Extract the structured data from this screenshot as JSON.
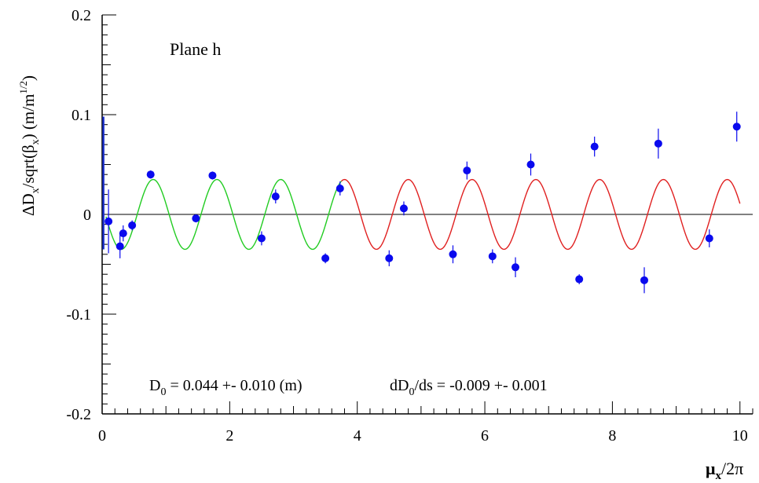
{
  "chart_data": {
    "type": "scatter",
    "annotation_plane": "Plane h",
    "x_axis_label": "μ",
    "x_axis_label_sub": "x",
    "x_axis_label_rest": "/2π",
    "y_axis_label": "ΔD",
    "y_axis_label_sub1": "x",
    "y_axis_label_mid": "/sqrt(β",
    "y_axis_label_sub2": "x",
    "y_axis_label_end": ") (m/m",
    "y_axis_label_sup": "1/2",
    "y_axis_label_close": ")",
    "fit_text_left_a": "D",
    "fit_text_left_sub": "0",
    "fit_text_left_b": " =  0.044 +-  0.010 (m)",
    "fit_text_right_a": "dD",
    "fit_text_right_sub": "0",
    "fit_text_right_b": "/ds = -0.009 +-  0.001",
    "xlim": [
      0,
      10.2
    ],
    "ylim": [
      -0.2,
      0.2
    ],
    "xticks": [
      0,
      2,
      4,
      6,
      8,
      10
    ],
    "xtick_labels": [
      "0",
      "2",
      "4",
      "6",
      "8",
      "10"
    ],
    "yticks": [
      -0.2,
      -0.1,
      0,
      0.1,
      0.2
    ],
    "ytick_labels": [
      "-0.2",
      "-0.1",
      "0",
      "0.1",
      "0.2"
    ],
    "points": [
      {
        "x": 0.1,
        "y": -0.007,
        "err": 0.032
      },
      {
        "x": 0.28,
        "y": -0.032,
        "err": 0.012
      },
      {
        "x": 0.33,
        "y": -0.019,
        "err": 0.008
      },
      {
        "x": 0.47,
        "y": -0.011,
        "err": 0.005
      },
      {
        "x": 0.76,
        "y": 0.04,
        "err": 0.004
      },
      {
        "x": 1.47,
        "y": -0.004,
        "err": 0.004
      },
      {
        "x": 1.73,
        "y": 0.039,
        "err": 0.004
      },
      {
        "x": 2.5,
        "y": -0.024,
        "err": 0.007
      },
      {
        "x": 2.72,
        "y": 0.018,
        "err": 0.007
      },
      {
        "x": 3.5,
        "y": -0.044,
        "err": 0.005
      },
      {
        "x": 3.73,
        "y": 0.026,
        "err": 0.007
      },
      {
        "x": 4.5,
        "y": -0.044,
        "err": 0.008
      },
      {
        "x": 4.73,
        "y": 0.006,
        "err": 0.007
      },
      {
        "x": 5.5,
        "y": -0.04,
        "err": 0.009
      },
      {
        "x": 5.72,
        "y": 0.044,
        "err": 0.009
      },
      {
        "x": 6.12,
        "y": -0.042,
        "err": 0.007
      },
      {
        "x": 6.48,
        "y": -0.053,
        "err": 0.01
      },
      {
        "x": 6.72,
        "y": 0.05,
        "err": 0.011
      },
      {
        "x": 7.48,
        "y": -0.065,
        "err": 0.005
      },
      {
        "x": 7.72,
        "y": 0.068,
        "err": 0.01
      },
      {
        "x": 8.5,
        "y": -0.066,
        "err": 0.013
      },
      {
        "x": 8.72,
        "y": 0.071,
        "err": 0.015
      },
      {
        "x": 9.52,
        "y": -0.024,
        "err": 0.009
      },
      {
        "x": 9.95,
        "y": 0.088,
        "err": 0.015
      }
    ],
    "fit_curve": {
      "amplitude": 0.035,
      "period": 1.0,
      "peak_x": 0.8,
      "segments": [
        {
          "x_start": 0.06,
          "x_end": 3.75,
          "color": "#22cc22"
        },
        {
          "x_start": 3.75,
          "x_end": 10.0,
          "color": "#e02020"
        }
      ]
    },
    "vertical_marker": {
      "x": 0.02,
      "y_from": -0.035,
      "y_to": 0.098,
      "color": "#1a2ecc"
    },
    "point_color": "#0a0aee",
    "grid": false,
    "legend": "none"
  }
}
